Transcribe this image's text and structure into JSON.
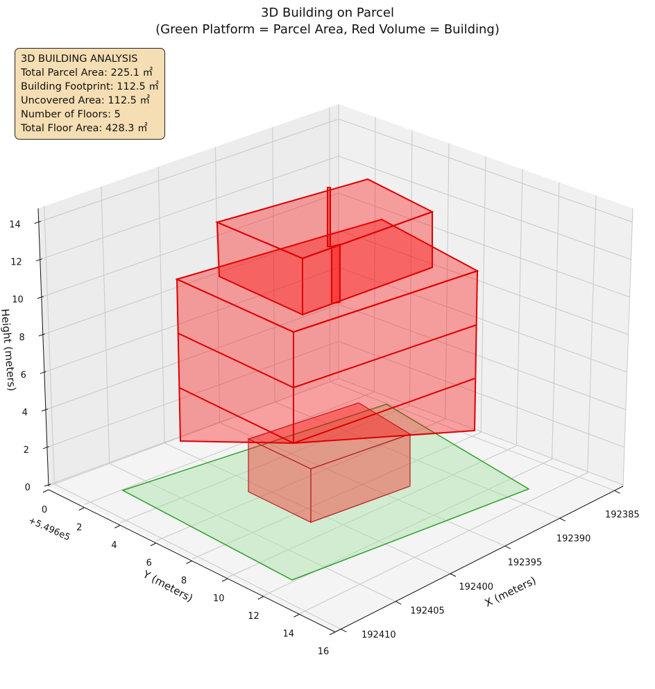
{
  "chart_data": {
    "type": "3d-box",
    "title": "3D Building on Parcel",
    "subtitle": "(Green Platform = Parcel Area, Red Volume = Building)",
    "xlabel": "X (meters)",
    "ylabel": "Y (meters)",
    "zlabel": "Height (meters)",
    "x_ticks": [
      "192385",
      "192390",
      "192395",
      "192400",
      "192405",
      "192410"
    ],
    "y_ticks": [
      "0",
      "2",
      "4",
      "6",
      "8",
      "10",
      "12",
      "14",
      "16"
    ],
    "y_offset": "+5.496e5",
    "z_ticks": [
      "0",
      "2",
      "4",
      "6",
      "8",
      "10",
      "12",
      "14"
    ],
    "colors": {
      "parcel": "#2ca02c",
      "building": "#ff0000"
    },
    "annotation": {
      "heading": "3D BUILDING ANALYSIS",
      "lines": [
        "Total Parcel Area: 225.1 ㎡",
        "Building Footprint: 112.5 ㎡",
        "Uncovered Area: 112.5 ㎡",
        "Number of Floors: 5",
        "Total Floor Area: 428.3 ㎡"
      ]
    }
  }
}
